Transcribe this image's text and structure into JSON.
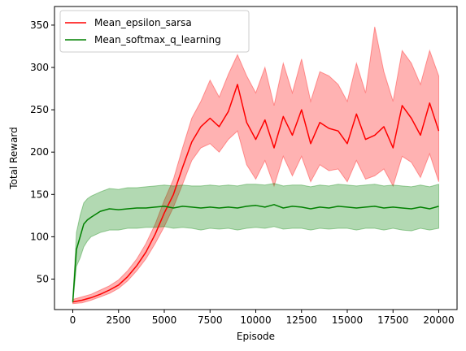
{
  "chart_data": {
    "type": "line",
    "xlabel": "Episode",
    "ylabel": "Total Reward",
    "xlim": [
      -1000,
      21000
    ],
    "ylim": [
      14,
      372
    ],
    "xticks": [
      0,
      2500,
      5000,
      7500,
      10000,
      12500,
      15000,
      17500,
      20000
    ],
    "yticks": [
      50,
      100,
      150,
      200,
      250,
      300,
      350
    ],
    "grid": false,
    "legend_position": "top-left",
    "series": [
      {
        "name": "Mean_epsilon_sarsa",
        "color": "#ff0000",
        "band_color": "#ff0000",
        "x": [
          0,
          500,
          1000,
          1500,
          2000,
          2500,
          3000,
          3500,
          4000,
          4500,
          5000,
          5500,
          6000,
          6500,
          7000,
          7500,
          8000,
          8500,
          9000,
          9500,
          10000,
          10500,
          11000,
          11500,
          12000,
          12500,
          13000,
          13500,
          14000,
          14500,
          15000,
          15500,
          16000,
          16500,
          17000,
          17500,
          18000,
          18500,
          19000,
          19500,
          20000
        ],
        "mean": [
          23,
          25,
          28,
          32,
          37,
          43,
          53,
          66,
          82,
          103,
          128,
          150,
          182,
          212,
          230,
          240,
          230,
          248,
          280,
          235,
          215,
          238,
          205,
          242,
          220,
          250,
          210,
          235,
          228,
          225,
          210,
          245,
          215,
          220,
          230,
          205,
          255,
          240,
          220,
          258,
          225
        ],
        "lower": [
          21,
          22,
          25,
          29,
          33,
          39,
          48,
          60,
          74,
          92,
          112,
          135,
          162,
          190,
          205,
          210,
          200,
          215,
          225,
          185,
          168,
          190,
          160,
          195,
          172,
          195,
          165,
          185,
          178,
          180,
          165,
          190,
          168,
          172,
          180,
          160,
          195,
          188,
          170,
          198,
          165
        ],
        "upper": [
          26,
          29,
          32,
          37,
          42,
          49,
          60,
          74,
          92,
          115,
          143,
          168,
          205,
          240,
          260,
          285,
          265,
          292,
          315,
          290,
          270,
          300,
          255,
          305,
          270,
          310,
          260,
          295,
          290,
          280,
          260,
          305,
          270,
          348,
          295,
          260,
          320,
          305,
          280,
          320,
          290
        ]
      },
      {
        "name": "Mean_softmax_q_learning",
        "color": "#008000",
        "band_color": "#008000",
        "x": [
          0,
          200,
          400,
          600,
          800,
          1000,
          1500,
          2000,
          2500,
          3000,
          3500,
          4000,
          4500,
          5000,
          5500,
          6000,
          6500,
          7000,
          7500,
          8000,
          8500,
          9000,
          9500,
          10000,
          10500,
          11000,
          11500,
          12000,
          12500,
          13000,
          13500,
          14000,
          14500,
          15000,
          15500,
          16000,
          16500,
          17000,
          17500,
          18000,
          18500,
          19000,
          19500,
          20000
        ],
        "mean": [
          23,
          85,
          100,
          115,
          120,
          123,
          130,
          133,
          132,
          133,
          134,
          134,
          135,
          136,
          134,
          136,
          135,
          134,
          135,
          134,
          135,
          134,
          136,
          137,
          135,
          138,
          134,
          136,
          135,
          133,
          135,
          134,
          136,
          135,
          134,
          135,
          136,
          134,
          135,
          134,
          133,
          135,
          133,
          136
        ],
        "lower": [
          22,
          65,
          75,
          88,
          95,
          100,
          105,
          108,
          108,
          110,
          110,
          111,
          111,
          112,
          110,
          111,
          110,
          108,
          110,
          109,
          110,
          108,
          110,
          111,
          110,
          112,
          109,
          110,
          110,
          108,
          110,
          109,
          110,
          110,
          108,
          110,
          110,
          108,
          110,
          108,
          107,
          110,
          108,
          110
        ],
        "upper": [
          25,
          105,
          125,
          140,
          145,
          148,
          153,
          157,
          156,
          158,
          158,
          159,
          160,
          161,
          160,
          161,
          160,
          160,
          161,
          160,
          161,
          160,
          162,
          162,
          161,
          163,
          160,
          161,
          161,
          159,
          161,
          160,
          162,
          161,
          160,
          161,
          162,
          160,
          161,
          160,
          159,
          161,
          159,
          162
        ]
      }
    ]
  }
}
